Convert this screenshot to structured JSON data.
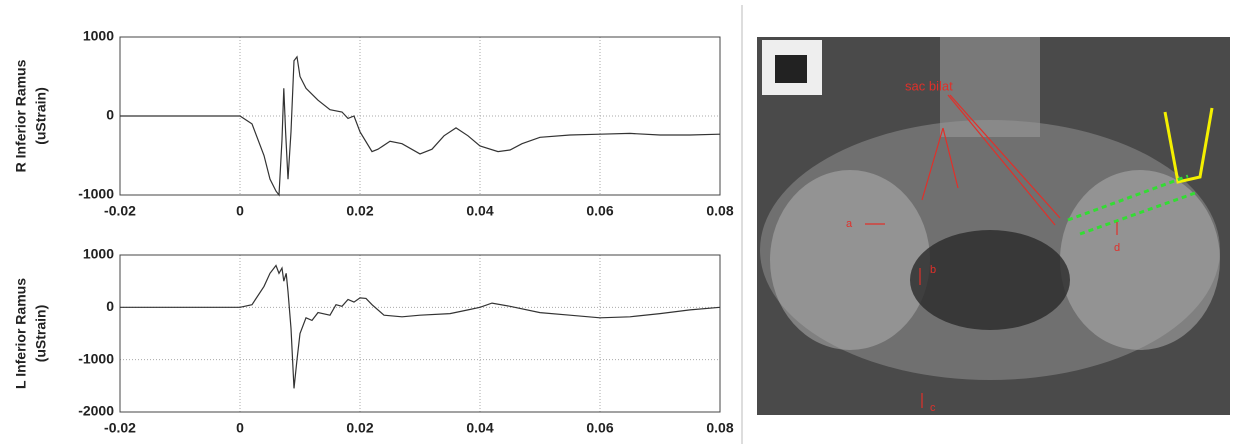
{
  "chart_data": [
    {
      "type": "line",
      "ylabel": [
        "R Inferior Ramus",
        "(uStrain)"
      ],
      "color": "#333333",
      "grid": true,
      "xlim": [
        -0.02,
        0.08
      ],
      "xticks": [
        -0.02,
        0,
        0.02,
        0.04,
        0.06,
        0.08
      ],
      "ylim": [
        -1000,
        1000
      ],
      "yticks": [
        -1000,
        0,
        1000
      ],
      "x": [
        -0.02,
        0,
        0.002,
        0.004,
        0.005,
        0.006,
        0.0065,
        0.007,
        0.0073,
        0.0076,
        0.008,
        0.0085,
        0.009,
        0.0095,
        0.01,
        0.011,
        0.013,
        0.015,
        0.017,
        0.018,
        0.019,
        0.02,
        0.022,
        0.023,
        0.025,
        0.027,
        0.03,
        0.032,
        0.034,
        0.036,
        0.038,
        0.04,
        0.043,
        0.045,
        0.047,
        0.05,
        0.055,
        0.06,
        0.065,
        0.07,
        0.075,
        0.08
      ],
      "values": [
        0,
        0,
        -100,
        -500,
        -800,
        -950,
        -1000,
        -300,
        350,
        -200,
        -800,
        -200,
        700,
        750,
        500,
        350,
        200,
        80,
        50,
        -30,
        0,
        -200,
        -450,
        -420,
        -320,
        -350,
        -480,
        -420,
        -250,
        -150,
        -250,
        -380,
        -450,
        -430,
        -350,
        -270,
        -240,
        -230,
        -220,
        -240,
        -240,
        -230
      ]
    },
    {
      "type": "line",
      "ylabel": [
        "L Inferior Ramus",
        "(uStrain)"
      ],
      "color": "#333333",
      "grid": true,
      "xlim": [
        -0.02,
        0.08
      ],
      "xticks": [
        -0.02,
        0,
        0.02,
        0.04,
        0.06,
        0.08
      ],
      "ylim": [
        -2000,
        1000
      ],
      "yticks": [
        -2000,
        -1000,
        0,
        1000
      ],
      "x": [
        -0.02,
        0,
        0.002,
        0.004,
        0.005,
        0.006,
        0.0065,
        0.007,
        0.0073,
        0.0077,
        0.008,
        0.0085,
        0.009,
        0.0095,
        0.01,
        0.011,
        0.012,
        0.013,
        0.015,
        0.016,
        0.017,
        0.018,
        0.019,
        0.02,
        0.021,
        0.022,
        0.024,
        0.027,
        0.03,
        0.035,
        0.038,
        0.04,
        0.042,
        0.045,
        0.05,
        0.055,
        0.06,
        0.065,
        0.07,
        0.075,
        0.08
      ],
      "values": [
        0,
        0,
        50,
        400,
        650,
        800,
        650,
        750,
        500,
        650,
        300,
        -400,
        -1550,
        -1000,
        -500,
        -200,
        -250,
        -100,
        -150,
        50,
        20,
        150,
        100,
        180,
        170,
        50,
        -150,
        -180,
        -150,
        -120,
        -50,
        0,
        80,
        20,
        -100,
        -150,
        -200,
        -180,
        -120,
        -50,
        0
      ]
    }
  ],
  "image": {
    "labels": [
      "sac bilat",
      "a",
      "b",
      "c",
      "d"
    ]
  }
}
